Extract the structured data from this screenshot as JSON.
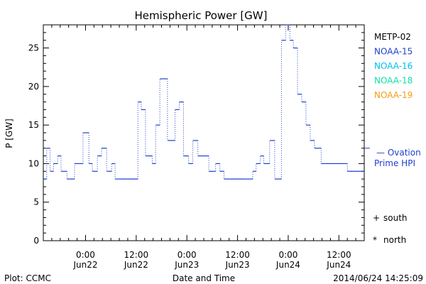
{
  "chart_data": {
    "type": "line",
    "title": "Hemispheric Power [GW]",
    "ylabel": "P [GW]",
    "xlabel": "Date and Time",
    "ylim": [
      0,
      28
    ],
    "xlim": [
      -5,
      33
    ],
    "yticks": [
      0,
      5,
      10,
      15,
      20,
      25
    ],
    "xticks": [
      {
        "x": 0,
        "line1": "0:00",
        "line2": "Jun22"
      },
      {
        "x": 6,
        "line1": "12:00",
        "line2": "Jun22"
      },
      {
        "x": 12,
        "line1": "0:00",
        "line2": "Jun23"
      },
      {
        "x": 18,
        "line1": "12:00",
        "line2": "Jun23"
      },
      {
        "x": 24,
        "line1": "0:00",
        "line2": "Jun24"
      },
      {
        "x": 30,
        "line1": "12:00",
        "line2": "Jun24"
      }
    ],
    "x_units": "hours from Jun22 00:00 UT",
    "series": [
      {
        "name": "NOAA-15",
        "color": "#1f3fcf",
        "style": "step",
        "x": [
          -5,
          -4.6,
          -4.2,
          -3.8,
          -3.3,
          -2.9,
          -2.2,
          -1.3,
          -0.3,
          0.4,
          0.8,
          1.4,
          1.9,
          2.5,
          3.1,
          3.5,
          4.1,
          6.2,
          6.6,
          7.1,
          7.9,
          8.3,
          8.8,
          9.7,
          10.6,
          11.1,
          11.6,
          12.2,
          12.7,
          13.3,
          14.2,
          14.6,
          15.4,
          15.9,
          16.4,
          16.9,
          17.4,
          18.8,
          19.8,
          20.2,
          20.7,
          21.1,
          21.8,
          22.4,
          23.2,
          23.7,
          24.2,
          24.6,
          25.1,
          25.6,
          26.1,
          26.6,
          27.1,
          27.9,
          28.5,
          29.0,
          29.6,
          30.4,
          31.0
        ],
        "y": [
          8,
          12,
          9,
          10,
          11,
          9,
          8,
          10,
          14,
          10,
          9,
          11,
          12,
          9,
          10,
          8,
          8,
          18,
          17,
          11,
          10,
          15,
          21,
          13,
          17,
          18,
          11,
          10,
          13,
          11,
          11,
          9,
          10,
          9,
          8,
          8,
          8,
          8,
          9,
          10,
          11,
          10,
          13,
          8,
          26,
          28,
          26,
          25,
          19,
          18,
          15,
          13,
          12,
          10,
          10,
          10,
          10,
          10,
          9
        ]
      }
    ],
    "legend": [
      {
        "name": "METP-02",
        "color": "#000000"
      },
      {
        "name": "NOAA-15",
        "color": "#1f3fcf"
      },
      {
        "name": "NOAA-16",
        "color": "#00bfef"
      },
      {
        "name": "NOAA-18",
        "color": "#10e0a0"
      },
      {
        "name": "NOAA-19",
        "color": "#f59b12"
      }
    ],
    "ovation": {
      "value": 12,
      "label_line1": "— Ovation",
      "label_line2": "Prime HPI",
      "color": "#1f3fcf"
    },
    "markers_legend": [
      {
        "symbol": "+",
        "label": "south"
      },
      {
        "symbol": "*",
        "label": "north"
      }
    ],
    "grid": false
  },
  "footer": {
    "left": "Plot: CCMC",
    "right": "2014/06/24 14:25:09"
  }
}
